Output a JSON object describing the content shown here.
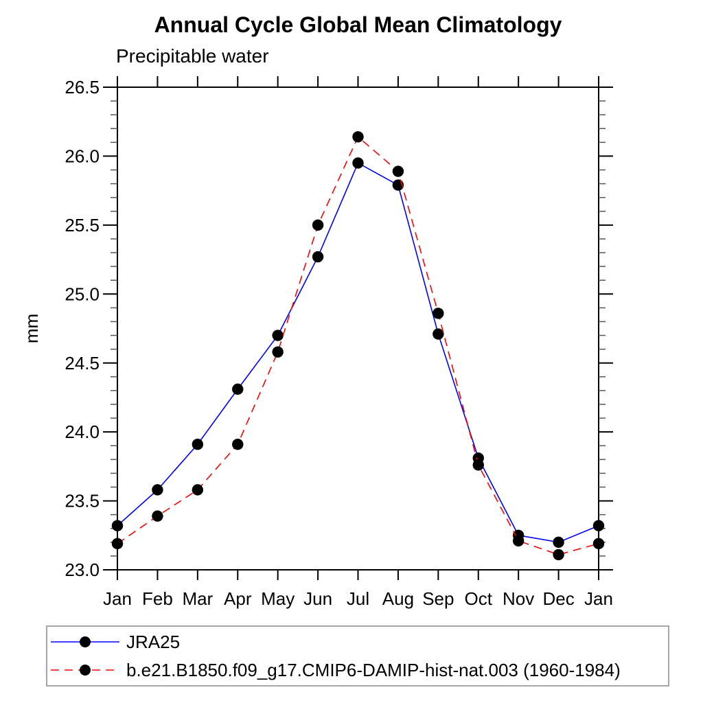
{
  "title": "Annual Cycle Global Mean Climatology",
  "subtitle": "Precipitable water",
  "chart_data": {
    "type": "line",
    "title": "Annual Cycle Global Mean Climatology",
    "subtitle": "Precipitable water",
    "xlabel": "",
    "ylabel": "mm",
    "categories": [
      "Jan",
      "Feb",
      "Mar",
      "Apr",
      "May",
      "Jun",
      "Jul",
      "Aug",
      "Sep",
      "Oct",
      "Nov",
      "Dec",
      "Jan"
    ],
    "ylim": [
      23.0,
      26.5
    ],
    "ytick_major": [
      23.0,
      23.5,
      24.0,
      24.5,
      25.0,
      25.5,
      26.0,
      26.5
    ],
    "ytick_minor_step": 0.1,
    "grid": false,
    "legend_position": "bottom",
    "series": [
      {
        "name": "JRA25",
        "color": "#0000ff",
        "style": "solid",
        "dash": "none",
        "marker": "circle",
        "marker_color": "#000000",
        "values": [
          23.32,
          23.58,
          23.91,
          24.31,
          24.7,
          25.27,
          25.95,
          25.79,
          24.71,
          23.81,
          23.25,
          23.2,
          23.32
        ]
      },
      {
        "name": "b.e21.B1850.f09_g17.CMIP6-DAMIP-hist-nat.003 (1960-1984)",
        "color": "#ff0000",
        "style": "dashed",
        "dash": "12,8",
        "marker": "circle",
        "marker_color": "#000000",
        "values": [
          23.19,
          23.39,
          23.58,
          23.91,
          24.58,
          25.5,
          26.14,
          25.89,
          24.86,
          23.76,
          23.21,
          23.11,
          23.19
        ]
      }
    ],
    "colors": {
      "axis": "#000000",
      "minor_tick": "#555555",
      "legend_border": "#a6a6a6"
    }
  }
}
